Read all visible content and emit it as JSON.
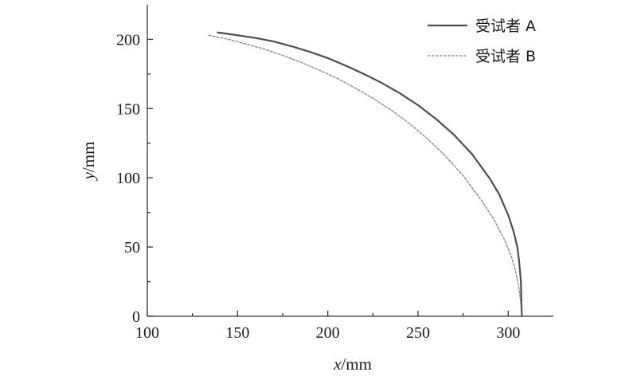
{
  "chart_data": {
    "type": "line",
    "xlabel": {
      "var": "x",
      "unit": "/mm"
    },
    "ylabel": {
      "var": "y",
      "unit": "/mm"
    },
    "xlim": [
      100,
      325
    ],
    "ylim": [
      0,
      225
    ],
    "x_ticks": [
      100,
      150,
      200,
      250,
      300
    ],
    "x_ticks_labels": [
      "100",
      "150",
      "200",
      "250",
      "300"
    ],
    "y_ticks": [
      0,
      50,
      100,
      150,
      200
    ],
    "y_ticks_labels": [
      "0",
      "50",
      "100",
      "150",
      "200"
    ],
    "minor_ticks": true,
    "grid": false,
    "legend_position": "top-right",
    "series": [
      {
        "name": "受试者 A",
        "style": "solid",
        "color": "#4d4d4d",
        "x": [
          139,
          150,
          160,
          170,
          180,
          190,
          200,
          210,
          220,
          230,
          240,
          250,
          260,
          270,
          280,
          290,
          295,
          300,
          303,
          305,
          306,
          307,
          307.5
        ],
        "y": [
          205,
          203,
          201,
          198.5,
          195,
          191,
          186.5,
          181,
          175,
          168.5,
          161,
          152.5,
          142.5,
          131,
          117,
          99,
          88,
          73,
          61,
          50,
          40,
          25,
          0
        ]
      },
      {
        "name": "受试者 B",
        "style": "dashed",
        "color": "#7a7a7a",
        "x": [
          134,
          145,
          155,
          165,
          175,
          185,
          195,
          205,
          215,
          225,
          235,
          245,
          255,
          265,
          275,
          285,
          292,
          298,
          302,
          304,
          306,
          307,
          307.2
        ],
        "y": [
          203,
          200,
          196.5,
          193,
          188.5,
          183.5,
          178,
          172,
          165,
          157.5,
          149,
          139.5,
          128.5,
          116,
          101.5,
          84,
          70,
          55,
          42,
          33,
          20,
          8,
          0
        ]
      }
    ]
  }
}
